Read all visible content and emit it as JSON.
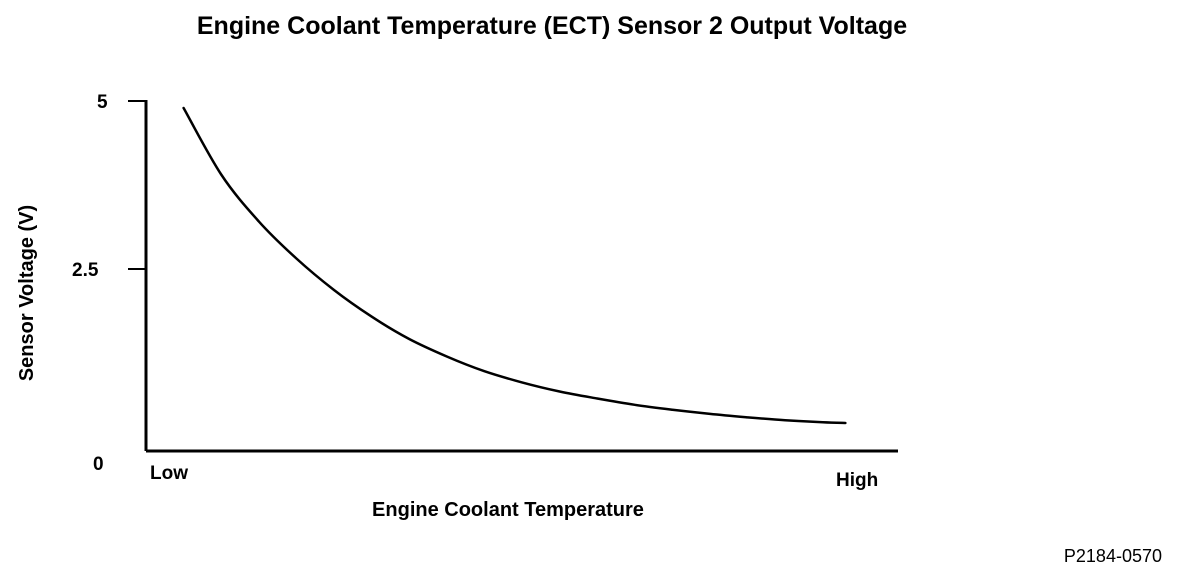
{
  "chart_data": {
    "type": "line",
    "title": "Engine Coolant Temperature (ECT) Sensor 2 Output Voltage",
    "xlabel": "Engine Coolant Temperature",
    "ylabel": "Sensor Voltage (V)",
    "x_tick_labels": [
      "Low",
      "High"
    ],
    "y_ticks": [
      {
        "value": 5,
        "label": "5"
      },
      {
        "value": 2.5,
        "label": "2.5"
      },
      {
        "value": 0,
        "label": "0"
      }
    ],
    "xlim": [
      0,
      100
    ],
    "ylim": [
      0,
      5
    ],
    "grid": false,
    "series": [
      {
        "name": "Sensor Voltage",
        "x": [
          5,
          10,
          15,
          20,
          25,
          30,
          35,
          40,
          45,
          50,
          55,
          60,
          65,
          70,
          75,
          80,
          85,
          90,
          93
        ],
        "y": [
          4.9,
          3.95,
          3.28,
          2.75,
          2.3,
          1.92,
          1.6,
          1.35,
          1.14,
          0.98,
          0.85,
          0.75,
          0.66,
          0.59,
          0.53,
          0.48,
          0.44,
          0.41,
          0.4
        ]
      }
    ]
  },
  "figure_id": "P2184-0570"
}
